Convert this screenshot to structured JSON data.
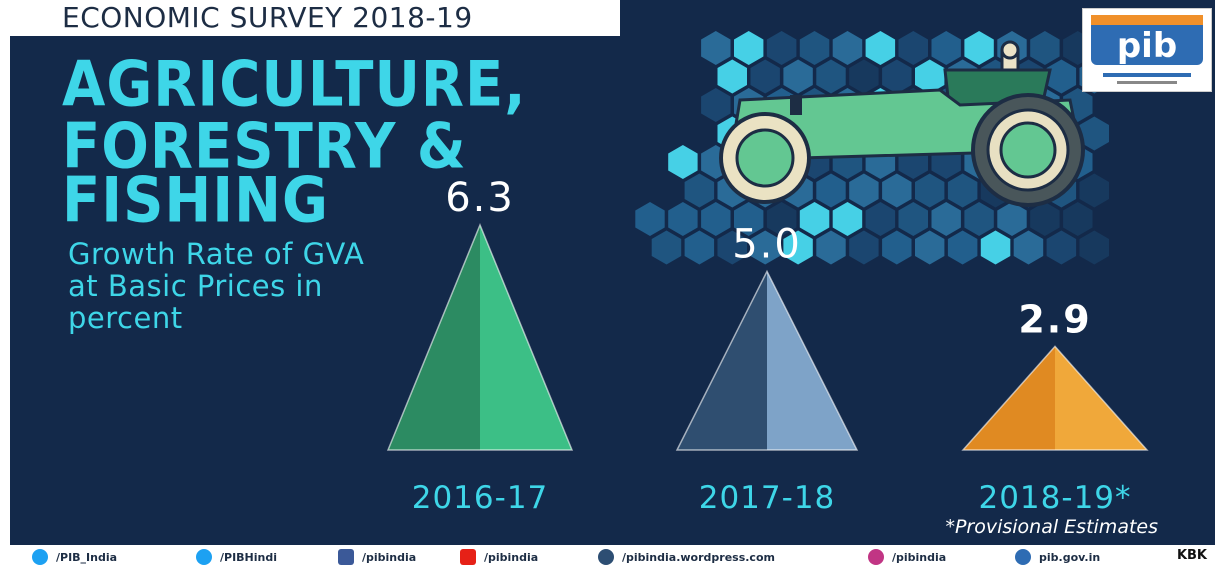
{
  "header": {
    "survey": "ECONOMIC SURVEY 2018-19",
    "title_lines": [
      "AGRICULTURE,",
      "FORESTRY &",
      "FISHING"
    ],
    "subtitle": "Growth Rate of GVA at Basic Prices in percent"
  },
  "logo": {
    "text": "pib"
  },
  "chart_data": {
    "type": "bar",
    "title": "",
    "xlabel": "",
    "ylabel": "Growth Rate of GVA at Basic Prices in percent",
    "categories": [
      "2016-17",
      "2017-18",
      "2018-19*"
    ],
    "values": [
      6.3,
      5.0,
      2.9
    ],
    "value_labels": [
      "6.3",
      "5.0",
      "2.9"
    ],
    "colors": [
      "#3cbf86",
      "#7ea3c8",
      "#f0a83a"
    ],
    "note": "*Provisional Estimates"
  },
  "footer": {
    "items": [
      {
        "label": "/PIB_India",
        "icon": "twitter-icon"
      },
      {
        "label": "/PIBHindi",
        "icon": "twitter-icon"
      },
      {
        "label": "/pibindia",
        "icon": "facebook-icon"
      },
      {
        "label": "/pibindia",
        "icon": "youtube-icon"
      },
      {
        "label": "/pibindia.wordpress.com",
        "icon": "wordpress-icon"
      },
      {
        "label": "/pibindia",
        "icon": "instagram-icon"
      },
      {
        "label": "pib.gov.in",
        "icon": "globe-icon"
      }
    ],
    "credit": "KBK"
  },
  "colors": {
    "background": "#13294a",
    "accent": "#3ed6e8",
    "text": "#ffffff"
  }
}
